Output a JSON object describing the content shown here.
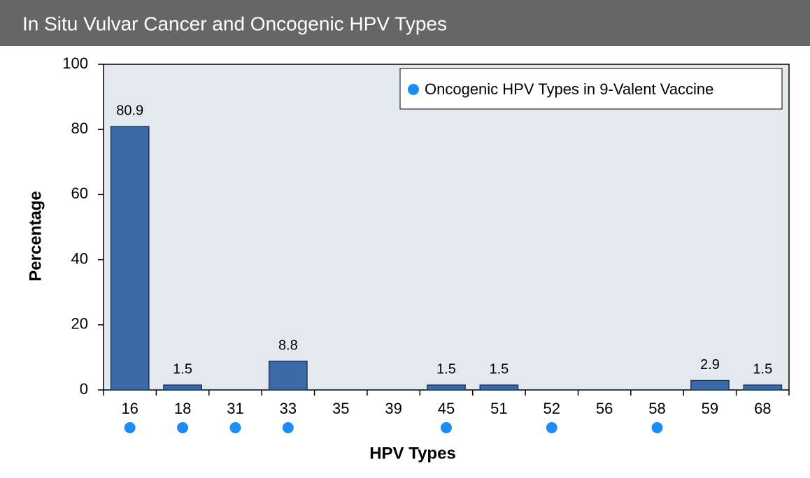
{
  "chart_data": {
    "type": "bar",
    "title": "In Situ Vulvar Cancer and Oncogenic HPV Types",
    "categories": [
      "16",
      "18",
      "31",
      "33",
      "35",
      "39",
      "45",
      "51",
      "52",
      "56",
      "58",
      "59",
      "68"
    ],
    "values": [
      80.9,
      1.5,
      0,
      8.8,
      0,
      0,
      1.5,
      1.5,
      0,
      0,
      0,
      2.9,
      1.5
    ],
    "color": "#3b6aa6",
    "in_vaccine": [
      true,
      true,
      true,
      true,
      false,
      false,
      true,
      false,
      true,
      false,
      true,
      false,
      false
    ],
    "marker_color": "#1e8cf5",
    "legend": "Oncogenic HPV Types in 9-Valent Vaccine",
    "x_label": "HPV Types",
    "y_label": "Percentage",
    "ylim": [
      0,
      100
    ],
    "yticks": [
      0,
      20,
      40,
      60,
      80,
      100
    ],
    "grid": false
  }
}
